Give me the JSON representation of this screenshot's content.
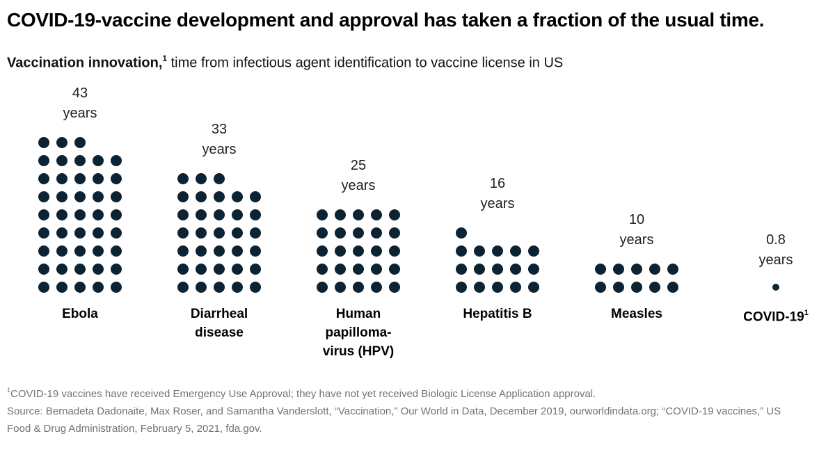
{
  "page": {
    "title": "COVID-19-vaccine development and approval has taken a fraction of the usual time.",
    "subtitle": {
      "bold": "Vaccination innovation,",
      "sup": "1",
      "rest": " time from infectious agent identification to vaccine license in US"
    },
    "footnote_sup": "1",
    "footnote": "COVID-19 vaccines have received Emergency Use Approval; they have not yet received Biologic License Application approval.",
    "source": "Source: Bernadeta Dadonaite, Max Roser, and Samantha Vanderslott, “Vaccination,” Our World in Data, December 2019, ourworldindata.org; “COVID-19 vaccines,” US Food & Drug Administration, February 5, 2021, fda.gov."
  },
  "colors": {
    "dot": "#0c2333",
    "title_text": "#000000",
    "footnote_text": "#737373",
    "background": "#ffffff"
  },
  "chart_data": {
    "type": "pictogram-dot",
    "title": "Vaccination innovation, time from infectious agent identification to vaccine license in US",
    "unit": "years",
    "dots_per_row": 5,
    "dot_represents": "1 year",
    "categories": [
      "Ebola",
      "Diarrheal disease",
      "Human papilloma-virus (HPV)",
      "Hepatitis B",
      "Measles",
      "COVID-19"
    ],
    "values": [
      43,
      33,
      25,
      16,
      10,
      0.8
    ],
    "layout": "groups bottom-aligned, value label above each dot stack, category label below",
    "groups": [
      {
        "id": "ebola",
        "name_lines": [
          "Ebola"
        ],
        "name_sup": "",
        "value_text": "43",
        "unit_text": "years",
        "dot_count": 43,
        "small_dot": false
      },
      {
        "id": "diarrheal-disease",
        "name_lines": [
          "Diarrheal",
          "disease"
        ],
        "name_sup": "",
        "value_text": "33",
        "unit_text": "years",
        "dot_count": 33,
        "small_dot": false
      },
      {
        "id": "hpv",
        "name_lines": [
          "Human",
          "papilloma-",
          "virus (HPV)"
        ],
        "name_sup": "",
        "value_text": "25",
        "unit_text": "years",
        "dot_count": 25,
        "small_dot": false
      },
      {
        "id": "hepatitis-b",
        "name_lines": [
          "Hepatitis B"
        ],
        "name_sup": "",
        "value_text": "16",
        "unit_text": "years",
        "dot_count": 16,
        "small_dot": false
      },
      {
        "id": "measles",
        "name_lines": [
          "Measles"
        ],
        "name_sup": "",
        "value_text": "10",
        "unit_text": "years",
        "dot_count": 10,
        "small_dot": false
      },
      {
        "id": "covid-19",
        "name_lines": [
          "COVID-19"
        ],
        "name_sup": "1",
        "value_text": "0.8",
        "unit_text": "years",
        "dot_count": 1,
        "small_dot": true
      }
    ]
  }
}
